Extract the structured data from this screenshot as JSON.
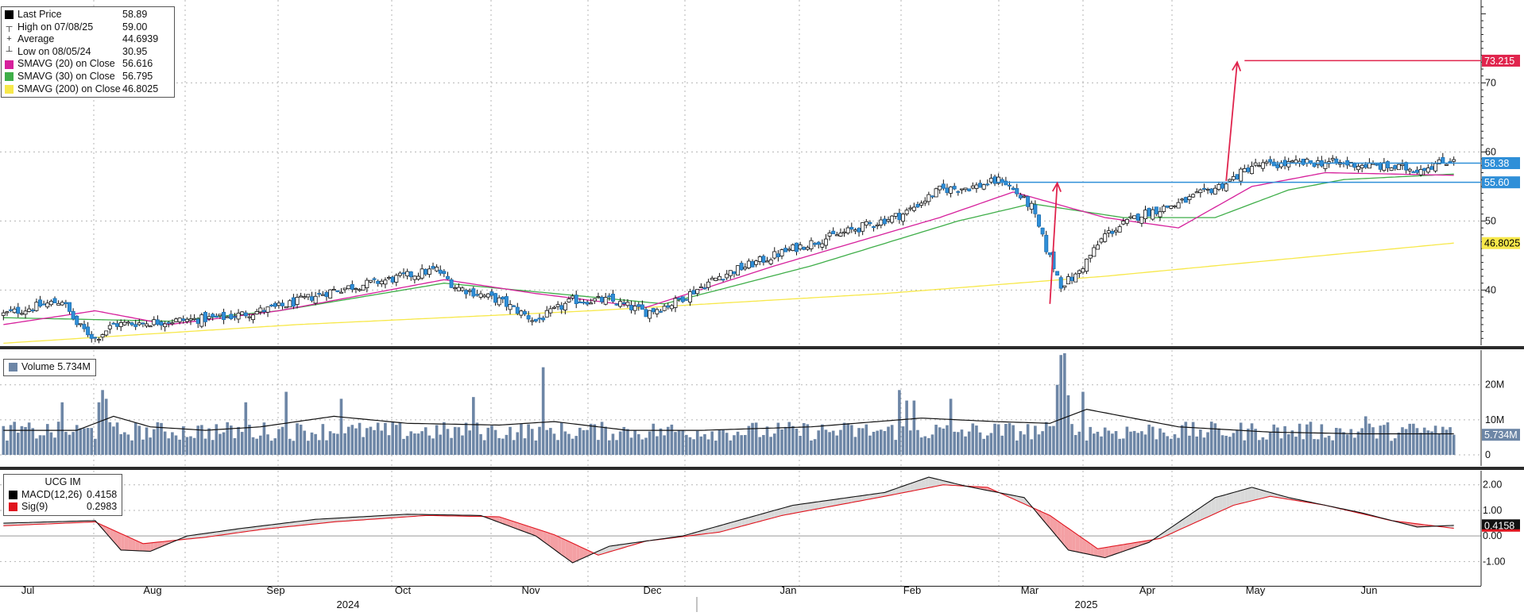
{
  "legend": [
    {
      "swatch": "#000000",
      "symbol": "",
      "label": "Last Price",
      "value": "58.89"
    },
    {
      "swatch": "",
      "symbol": "┬",
      "label": "High on 07/08/25",
      "value": "59.00"
    },
    {
      "swatch": "",
      "symbol": "+",
      "label": "Average",
      "value": "44.6939"
    },
    {
      "swatch": "",
      "symbol": "┴",
      "label": "Low on 08/05/24",
      "value": "30.95"
    },
    {
      "swatch": "#d6219c",
      "symbol": "",
      "label": "SMAVG (20)  on Close",
      "value": "56.616"
    },
    {
      "swatch": "#3fae49",
      "symbol": "",
      "label": "SMAVG (30)  on Close",
      "value": "56.795"
    },
    {
      "swatch": "#f7e84a",
      "symbol": "",
      "label": "SMAVG (200)  on Close",
      "value": "46.8025"
    }
  ],
  "volume_legend": {
    "label": "Volume",
    "value": "5.734M",
    "swatch": "#6d86a6"
  },
  "macd_legend": {
    "title": "UCG IM",
    "rows": [
      {
        "swatch": "#000000",
        "label": "MACD(12,26)",
        "value": "0.4158"
      },
      {
        "swatch": "#e0141e",
        "label": "Sig(9)",
        "value": "0.2983"
      }
    ]
  },
  "chart_data": [
    {
      "panel": "price",
      "type": "candlestick",
      "y_ticks": [
        "40",
        "50",
        "60",
        "70"
      ],
      "ylim": [
        32,
        82
      ],
      "x_tick_labels": [
        "Jul",
        "Aug",
        "Sep",
        "Oct",
        "Nov",
        "Dec",
        "Jan",
        "Feb",
        "Mar",
        "Apr",
        "May",
        "Jun"
      ],
      "year_labels": [
        "2024",
        "2025"
      ],
      "close_anchors": [
        [
          0,
          36.5
        ],
        [
          16,
          38.5
        ],
        [
          20,
          35
        ],
        [
          25,
          33
        ],
        [
          30,
          35
        ],
        [
          45,
          35.5
        ],
        [
          60,
          36
        ],
        [
          75,
          37.5
        ],
        [
          90,
          40
        ],
        [
          105,
          41.5
        ],
        [
          118,
          43
        ],
        [
          123,
          40.5
        ],
        [
          135,
          38.5
        ],
        [
          145,
          35.5
        ],
        [
          155,
          38.5
        ],
        [
          165,
          38.5
        ],
        [
          175,
          36.8
        ],
        [
          182,
          38
        ],
        [
          195,
          42
        ],
        [
          215,
          46
        ],
        [
          230,
          48.5
        ],
        [
          245,
          51
        ],
        [
          255,
          54.5
        ],
        [
          265,
          55
        ],
        [
          272,
          56
        ],
        [
          280,
          52
        ],
        [
          284,
          46
        ],
        [
          288,
          40.8
        ],
        [
          292,
          42
        ],
        [
          300,
          48
        ],
        [
          310,
          51
        ],
        [
          320,
          52.5
        ],
        [
          333,
          55.5
        ],
        [
          340,
          58
        ],
        [
          360,
          58.5
        ],
        [
          385,
          57.5
        ],
        [
          395,
          58.89
        ]
      ],
      "close_last": 58.89,
      "n_sessions": 396,
      "series": [
        {
          "name": "SMAVG (20)  on Close",
          "color": "#d6219c",
          "anchors": [
            [
              0,
              35
            ],
            [
              25,
              37
            ],
            [
              45,
              35
            ],
            [
              75,
              37
            ],
            [
              120,
              41.5
            ],
            [
              145,
              39.5
            ],
            [
              175,
              37.5
            ],
            [
              210,
              43.5
            ],
            [
              255,
              50.5
            ],
            [
              275,
              54.2
            ],
            [
              300,
              50.5
            ],
            [
              320,
              49
            ],
            [
              340,
              55
            ],
            [
              360,
              57
            ],
            [
              395,
              56.616
            ]
          ]
        },
        {
          "name": "SMAVG (30)  on Close",
          "color": "#3fae49",
          "anchors": [
            [
              0,
              36
            ],
            [
              45,
              35.5
            ],
            [
              75,
              37
            ],
            [
              120,
              41
            ],
            [
              150,
              39.5
            ],
            [
              180,
              38
            ],
            [
              220,
              43.5
            ],
            [
              260,
              50
            ],
            [
              280,
              52.5
            ],
            [
              305,
              50.5
            ],
            [
              330,
              50.5
            ],
            [
              350,
              54.5
            ],
            [
              365,
              56
            ],
            [
              395,
              56.795
            ]
          ]
        },
        {
          "name": "SMAVG (200)  on Close",
          "color": "#f7e84a",
          "anchors": [
            [
              0,
              32.3
            ],
            [
              80,
              35
            ],
            [
              160,
              37
            ],
            [
              240,
              39.5
            ],
            [
              300,
              42
            ],
            [
              395,
              46.8025
            ]
          ]
        }
      ],
      "annotations": {
        "price_labels": [
          {
            "text": "73.215",
            "y": 73.215,
            "bg": "#e0244d",
            "fg": "#ffffff"
          },
          {
            "text": "58.38",
            "y": 58.38,
            "bg": "#2f8fd8",
            "fg": "#ffffff"
          },
          {
            "text": "55.60",
            "y": 55.6,
            "bg": "#2f8fd8",
            "fg": "#ffffff"
          },
          {
            "text": "46.8025",
            "y": 46.8025,
            "bg": "#f7e84a",
            "fg": "#000000"
          }
        ],
        "hlines": [
          {
            "y": 55.6,
            "from": 270,
            "to": 395,
            "color": "#2f8fd8"
          },
          {
            "y": 58.38,
            "from": 345,
            "to": 395,
            "color": "#2f8fd8"
          },
          {
            "y": 73.215,
            "from": 338,
            "to": 395,
            "color": "#e0244d"
          }
        ],
        "arrows": [
          {
            "from": [
              285,
              38
            ],
            "to": [
              287,
              55.5
            ],
            "color": "#e0244d"
          },
          {
            "from": [
              333,
              55.8
            ],
            "to": [
              336,
              73
            ],
            "color": "#e0244d"
          }
        ]
      }
    },
    {
      "panel": "volume",
      "type": "bar",
      "y_ticks": [
        "0",
        "10M",
        "20M"
      ],
      "ylim": [
        0,
        29
      ],
      "unit": "M",
      "last_value": 5.734,
      "spikes": [
        [
          16,
          15
        ],
        [
          26,
          15
        ],
        [
          27,
          18.5
        ],
        [
          28,
          16
        ],
        [
          66,
          15
        ],
        [
          77,
          18
        ],
        [
          92,
          16
        ],
        [
          128,
          16.5
        ],
        [
          147,
          25
        ],
        [
          244,
          18.5
        ],
        [
          246,
          15.5
        ],
        [
          248,
          15.5
        ],
        [
          258,
          16
        ],
        [
          287,
          20
        ],
        [
          288,
          28.5
        ],
        [
          289,
          29
        ],
        [
          290,
          17
        ],
        [
          294,
          18
        ],
        [
          330,
          9
        ],
        [
          371,
          11
        ]
      ],
      "ma_anchors": [
        [
          0,
          7
        ],
        [
          20,
          7
        ],
        [
          30,
          11
        ],
        [
          40,
          8
        ],
        [
          55,
          7
        ],
        [
          70,
          8
        ],
        [
          90,
          11
        ],
        [
          110,
          9
        ],
        [
          135,
          8.5
        ],
        [
          150,
          9.5
        ],
        [
          170,
          7
        ],
        [
          190,
          7
        ],
        [
          220,
          8
        ],
        [
          250,
          10.5
        ],
        [
          270,
          9.5
        ],
        [
          285,
          9
        ],
        [
          295,
          13
        ],
        [
          305,
          11
        ],
        [
          320,
          8
        ],
        [
          345,
          6.5
        ],
        [
          370,
          6
        ],
        [
          395,
          6
        ]
      ],
      "series": [
        {
          "name": "Volume",
          "color": "#6d86a6"
        }
      ]
    },
    {
      "panel": "macd",
      "type": "line",
      "y_ticks": [
        "-1.00",
        "0.00",
        "1.00",
        "2.00"
      ],
      "ylim": [
        -1.95,
        2.55
      ],
      "macd_anchors": [
        [
          0,
          0.5
        ],
        [
          25,
          0.6
        ],
        [
          32,
          -0.55
        ],
        [
          40,
          -0.6
        ],
        [
          50,
          0
        ],
        [
          65,
          0.3
        ],
        [
          85,
          0.65
        ],
        [
          110,
          0.85
        ],
        [
          130,
          0.8
        ],
        [
          145,
          0
        ],
        [
          155,
          -1.05
        ],
        [
          165,
          -0.4
        ],
        [
          185,
          0
        ],
        [
          200,
          0.6
        ],
        [
          215,
          1.2
        ],
        [
          240,
          1.7
        ],
        [
          252,
          2.3
        ],
        [
          262,
          1.95
        ],
        [
          278,
          1.5
        ],
        [
          290,
          -0.55
        ],
        [
          300,
          -0.85
        ],
        [
          312,
          -0.25
        ],
        [
          330,
          1.5
        ],
        [
          340,
          1.9
        ],
        [
          350,
          1.5
        ],
        [
          370,
          0.9
        ],
        [
          385,
          0.35
        ],
        [
          395,
          0.4158
        ]
      ],
      "sig_anchors": [
        [
          0,
          0.4
        ],
        [
          25,
          0.55
        ],
        [
          38,
          -0.3
        ],
        [
          55,
          -0.05
        ],
        [
          70,
          0.25
        ],
        [
          90,
          0.55
        ],
        [
          115,
          0.8
        ],
        [
          135,
          0.75
        ],
        [
          150,
          0.05
        ],
        [
          162,
          -0.75
        ],
        [
          175,
          -0.2
        ],
        [
          195,
          0.15
        ],
        [
          212,
          0.8
        ],
        [
          240,
          1.55
        ],
        [
          256,
          2
        ],
        [
          268,
          1.9
        ],
        [
          285,
          0.8
        ],
        [
          298,
          -0.5
        ],
        [
          315,
          -0.1
        ],
        [
          335,
          1.2
        ],
        [
          345,
          1.55
        ],
        [
          360,
          1.2
        ],
        [
          378,
          0.6
        ],
        [
          395,
          0.2983
        ]
      ],
      "last_label": "0.4158",
      "series": [
        {
          "name": "MACD(12,26)",
          "color": "#000000"
        },
        {
          "name": "Sig(9)",
          "color": "#e0141e"
        }
      ]
    }
  ]
}
